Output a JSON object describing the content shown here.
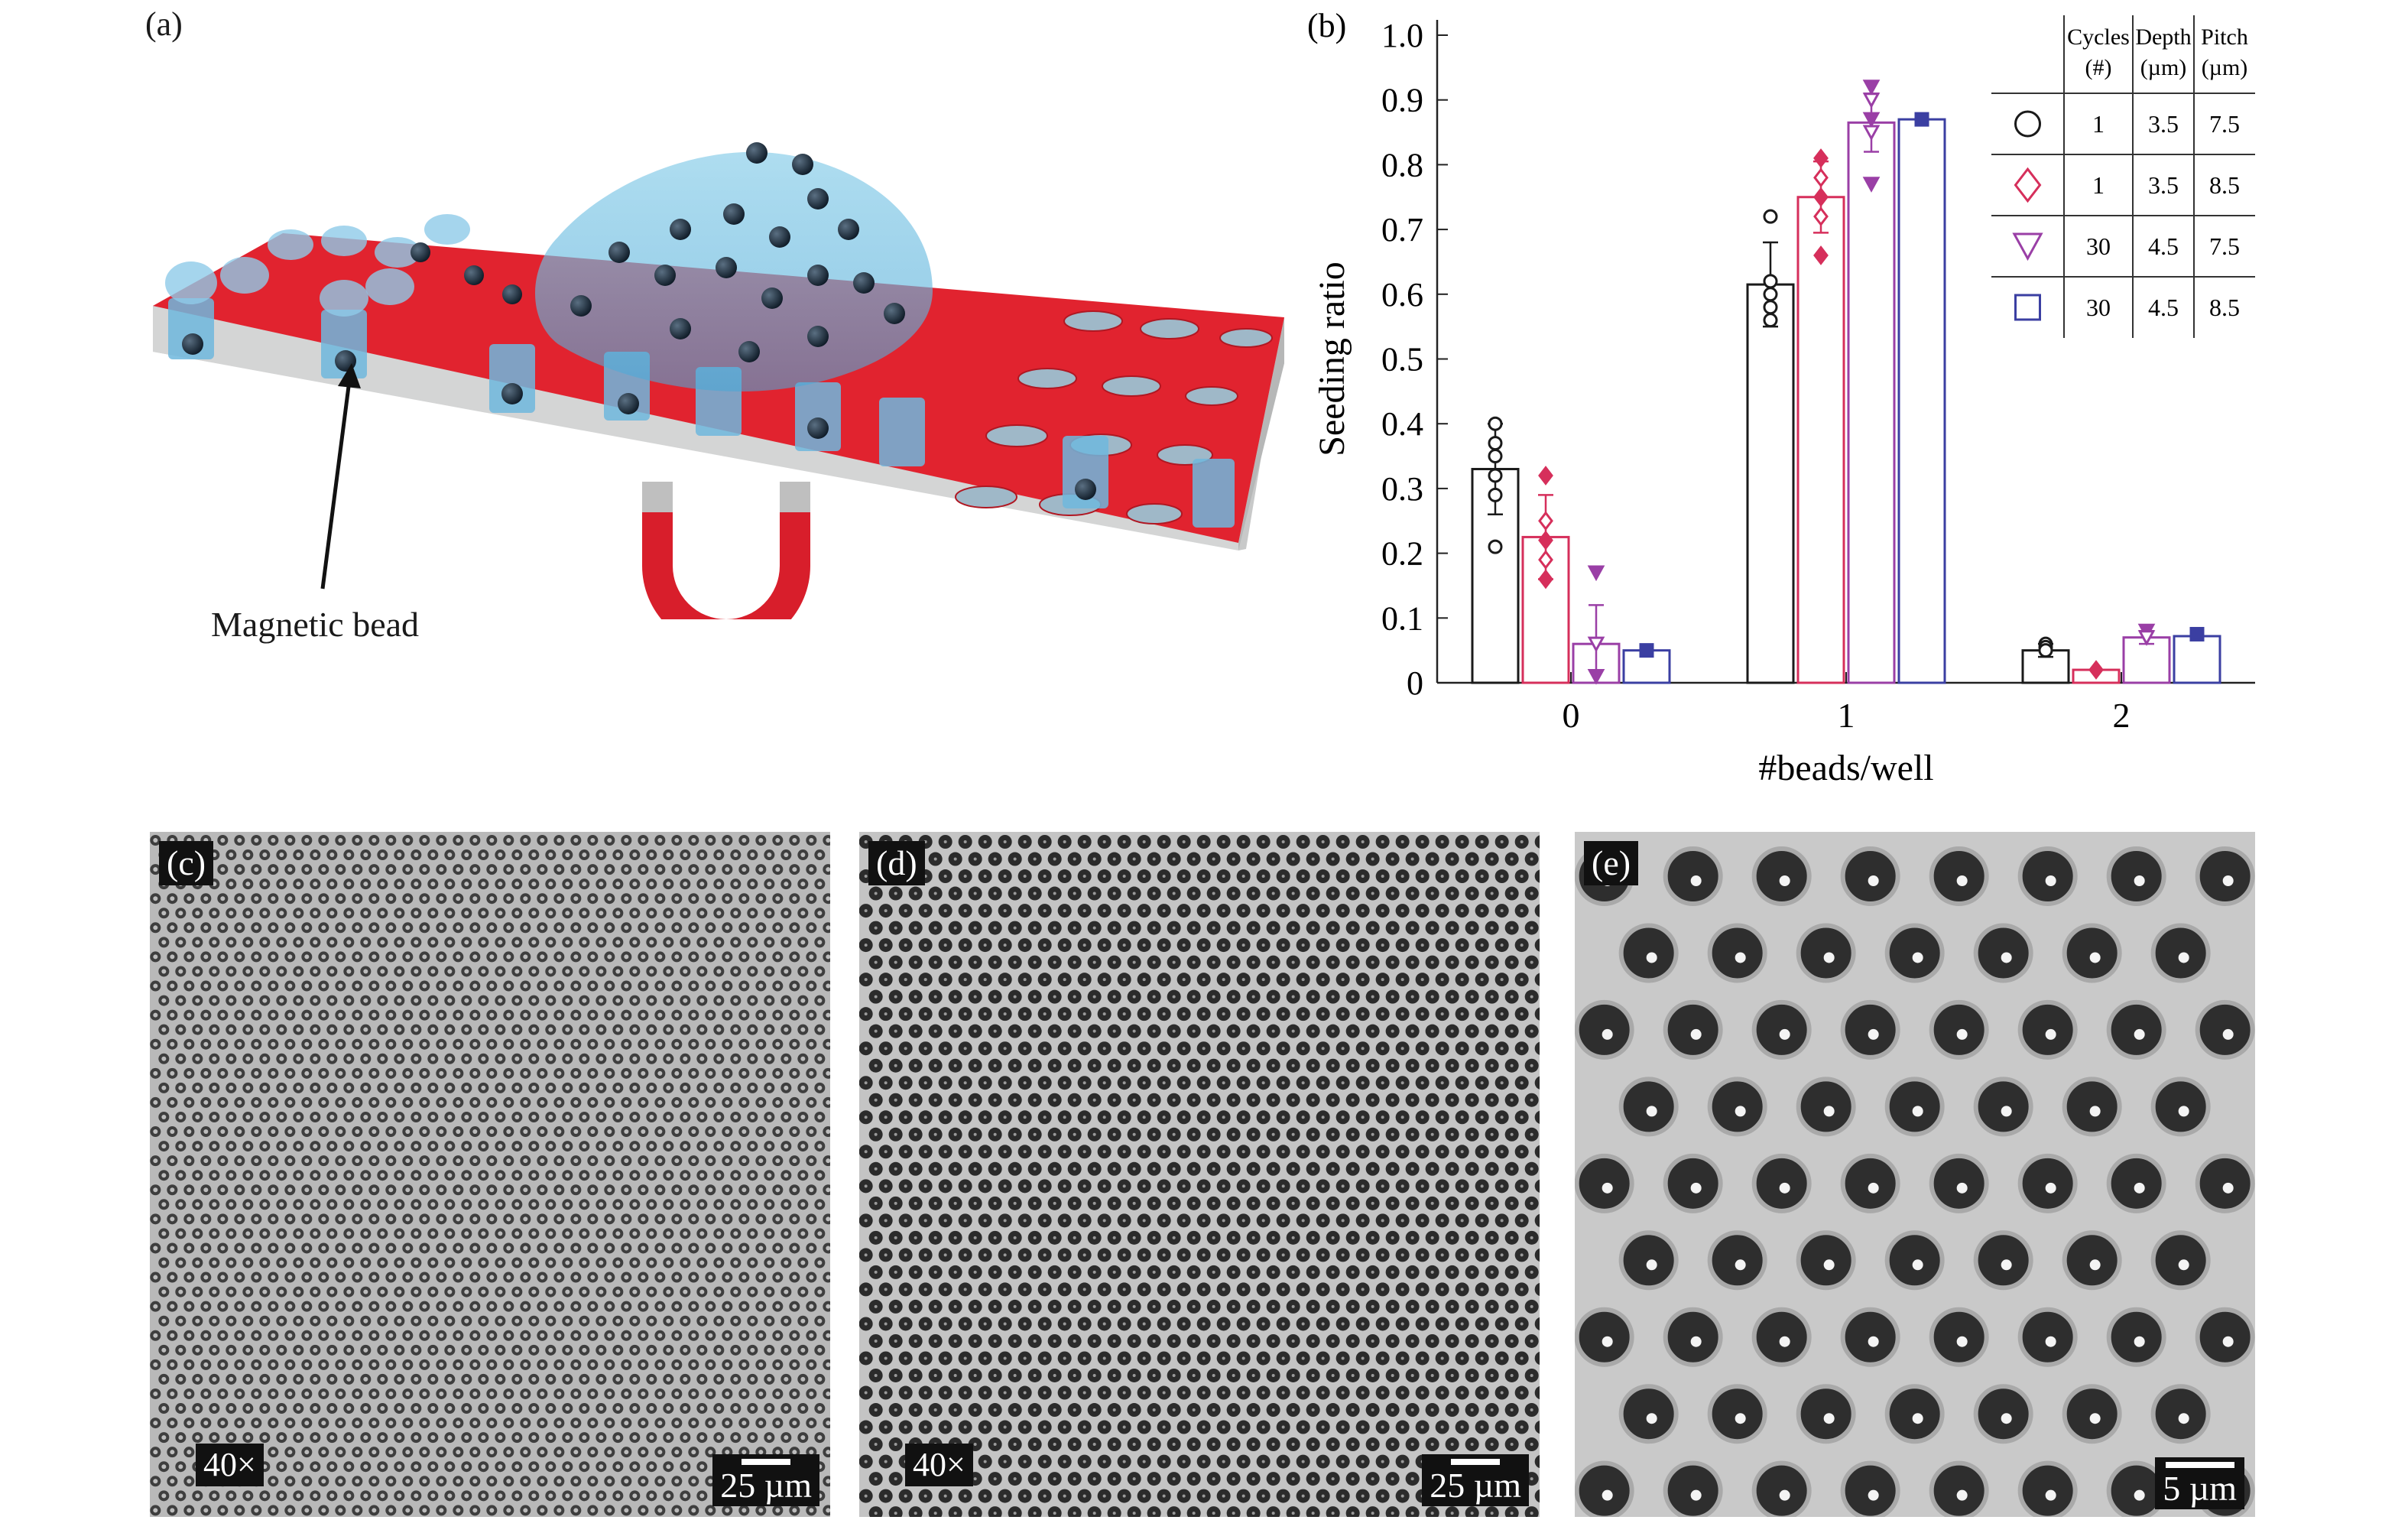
{
  "panels": {
    "a": {
      "letter": "(a)",
      "bead_label": "Magnetic bead"
    },
    "b": {
      "letter": "(b)"
    },
    "c": {
      "letter": "(c)",
      "magnification": "40×",
      "scale": "25 µm"
    },
    "d": {
      "letter": "(d)",
      "magnification": "40×",
      "scale": "25 µm"
    },
    "e": {
      "letter": "(e)",
      "scale": "5 µm"
    }
  },
  "chart_data": {
    "type": "bar",
    "xlabel": "#beads/well",
    "ylabel": "Seeding ratio",
    "ylim": [
      0,
      1.0
    ],
    "yticks": [
      "0",
      "0.1",
      "0.2",
      "0.3",
      "0.4",
      "0.5",
      "0.6",
      "0.7",
      "0.8",
      "0.9",
      "1.0"
    ],
    "categories": [
      "0",
      "1",
      "2"
    ],
    "series": [
      {
        "marker": "circle",
        "color": "#1a1a1a",
        "values": [
          0.33,
          0.615,
          0.05
        ],
        "errors": [
          0.07,
          0.065,
          0.01
        ],
        "points": [
          [
            0.4,
            0.37,
            0.35,
            0.32,
            0.29,
            0.21
          ],
          [
            0.72,
            0.62,
            0.6,
            0.58,
            0.56
          ],
          [
            0.06,
            0.055,
            0.05
          ]
        ]
      },
      {
        "marker": "diamond",
        "color": "#d62f5b",
        "values": [
          0.225,
          0.75,
          0.02
        ],
        "errors": [
          0.065,
          0.055,
          0.005
        ],
        "points": [
          [
            0.32,
            0.25,
            0.22,
            0.19,
            0.16
          ],
          [
            0.81,
            0.78,
            0.75,
            0.72,
            0.66
          ],
          [
            0.02
          ]
        ]
      },
      {
        "marker": "triangle",
        "color": "#9a3fa6",
        "values": [
          0.06,
          0.865,
          0.07
        ],
        "errors": [
          0.06,
          0.045,
          0.01
        ],
        "points": [
          [
            0.17,
            0.06,
            0.01
          ],
          [
            0.92,
            0.9,
            0.87,
            0.85,
            0.77
          ],
          [
            0.08,
            0.07
          ]
        ]
      },
      {
        "marker": "square",
        "color": "#3b3fa2",
        "values": [
          0.05,
          0.87,
          0.072
        ],
        "errors": [
          0.005,
          0.005,
          0.005
        ],
        "points": [
          [
            0.05
          ],
          [
            0.87
          ],
          [
            0.075
          ]
        ]
      }
    ],
    "legend_table": {
      "headers": [
        "Cycles\n(#)",
        "Depth\n(µm)",
        "Pitch\n(µm)"
      ],
      "rows": [
        [
          "1",
          "3.5",
          "7.5"
        ],
        [
          "1",
          "3.5",
          "8.5"
        ],
        [
          "30",
          "4.5",
          "7.5"
        ],
        [
          "30",
          "4.5",
          "8.5"
        ]
      ],
      "placement": "top-right"
    }
  }
}
